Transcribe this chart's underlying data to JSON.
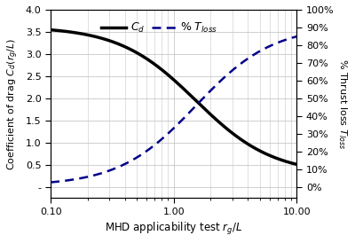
{
  "xlabel": "MHD applicability test $r_g/L$",
  "ylabel_left": "Coefficient of drag $C_d(r_g/L)$",
  "ylabel_right": "% Thrust loss $T_{loss}$",
  "x_min": 0.1,
  "x_max": 10.0,
  "x_ticks": [
    0.1,
    1.0,
    10.0
  ],
  "x_tick_labels": [
    "0.10",
    "1.00",
    "10.00"
  ],
  "y_left_min": -0.25,
  "y_left_max": 4.0,
  "y_left_ticks": [
    0.0,
    0.5,
    1.0,
    1.5,
    2.0,
    2.5,
    3.0,
    3.5,
    4.0
  ],
  "y_left_tick_labels": [
    "-",
    "0.5",
    "1.0",
    "1.5",
    "2.0",
    "2.5",
    "3.0",
    "3.5",
    "4.0"
  ],
  "y_right_min": -6.25,
  "y_right_max": 100,
  "y_right_ticks": [
    0,
    10,
    20,
    30,
    40,
    50,
    60,
    70,
    80,
    90,
    100
  ],
  "y_right_tick_labels": [
    "0%",
    "10%",
    "20%",
    "30%",
    "40%",
    "50%",
    "60%",
    "70%",
    "80%",
    "90%",
    "100%"
  ],
  "cd_color": "#000000",
  "tloss_color": "#00008B",
  "cd_linewidth": 2.5,
  "tloss_linewidth": 1.8,
  "cd_max": 3.62,
  "cd_min": 0.28,
  "tloss_max": 91.0,
  "tloss_min": 0.5,
  "sigmoid_k": 3.2,
  "sigmoid_x0": 0.18,
  "legend_cd": "$C_d$",
  "legend_tloss": "% $T_{loss}$",
  "grid_color": "#c8c8c8",
  "grid_linewidth": 0.6,
  "bg_color": "#f5f5f5"
}
